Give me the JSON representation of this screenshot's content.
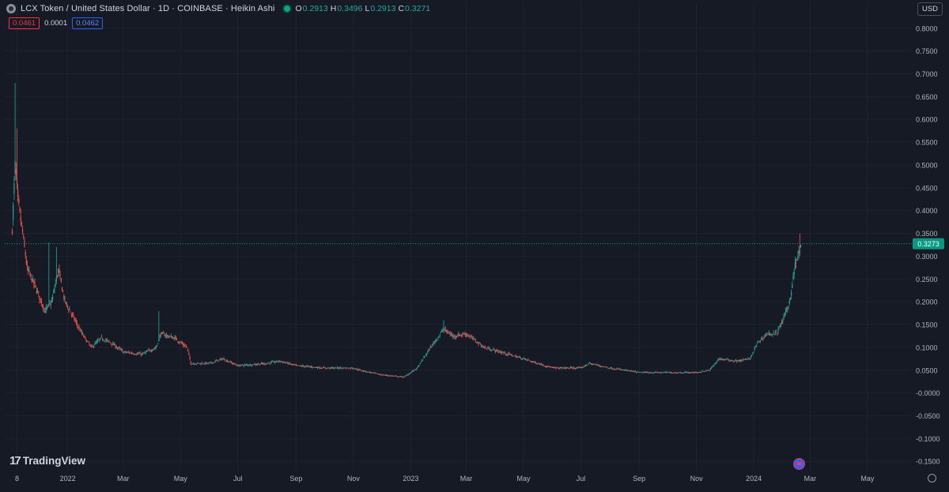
{
  "header": {
    "title": "LCX Token / United States Dollar · 1D · COINBASE · Heikin Ashi",
    "ohlc": [
      {
        "k": "O",
        "v": "0.2913"
      },
      {
        "k": "H",
        "v": "0.3496"
      },
      {
        "k": "L",
        "v": "0.2913"
      },
      {
        "k": "C",
        "v": "0.3271"
      }
    ],
    "bid": "0.0461",
    "spread": "0.0001",
    "ask": "0.0462",
    "currency": "USD"
  },
  "brand": "TradingView",
  "colors": {
    "up": "#26a69a",
    "down": "#ef5350",
    "background": "#161a25",
    "grid": "#1f2330",
    "price_tag": "#089981"
  },
  "icons": [
    "coin-logo-icon",
    "live-status-icon",
    "tradingview-logo-icon",
    "event-flag-icon",
    "settings-gear-icon"
  ],
  "chart_data": {
    "type": "candlestick",
    "style": "Heikin Ashi",
    "ylim": [
      -0.16,
      0.81
    ],
    "y_ticks": [
      "0.8000",
      "0.7500",
      "0.7000",
      "0.6500",
      "0.6000",
      "0.5500",
      "0.5000",
      "0.4500",
      "0.4000",
      "0.3500",
      "0.3000",
      "0.2500",
      "0.2000",
      "0.1500",
      "0.1000",
      "0.0500",
      "-0.0000",
      "-0.0500",
      "-0.1000",
      "-0.1500"
    ],
    "y_tick_values": [
      0.8,
      0.75,
      0.7,
      0.65,
      0.6,
      0.55,
      0.5,
      0.45,
      0.4,
      0.35,
      0.3,
      0.25,
      0.2,
      0.15,
      0.1,
      0.05,
      0,
      -0.05,
      -0.1,
      -0.15
    ],
    "x_labels": [
      {
        "label": "8",
        "date": "2021-11-08"
      },
      {
        "label": "2022",
        "date": "2022-01-01"
      },
      {
        "label": "Mar",
        "date": "2022-03-01"
      },
      {
        "label": "May",
        "date": "2022-05-01"
      },
      {
        "label": "Jul",
        "date": "2022-07-01"
      },
      {
        "label": "Sep",
        "date": "2022-09-01"
      },
      {
        "label": "Nov",
        "date": "2022-11-01"
      },
      {
        "label": "2023",
        "date": "2023-01-01"
      },
      {
        "label": "Mar",
        "date": "2023-03-01"
      },
      {
        "label": "May",
        "date": "2023-05-01"
      },
      {
        "label": "Jul",
        "date": "2023-07-01"
      },
      {
        "label": "Sep",
        "date": "2023-09-01"
      },
      {
        "label": "Nov",
        "date": "2023-11-01"
      },
      {
        "label": "2024",
        "date": "2024-01-01"
      },
      {
        "label": "Mar",
        "date": "2024-03-01"
      },
      {
        "label": "May",
        "date": "2024-05-01"
      }
    ],
    "x_range": [
      "2021-10-26",
      "2024-06-13"
    ],
    "last_price": "0.3273",
    "last_price_value": 0.3273,
    "trend_anchors": [
      {
        "date": "2021-11-03",
        "value": 0.36
      },
      {
        "date": "2021-11-06",
        "value": 0.5
      },
      {
        "date": "2021-11-09",
        "value": 0.42
      },
      {
        "date": "2021-11-14",
        "value": 0.35
      },
      {
        "date": "2021-11-19",
        "value": 0.27
      },
      {
        "date": "2021-11-26",
        "value": 0.24
      },
      {
        "date": "2021-12-08",
        "value": 0.18
      },
      {
        "date": "2021-12-15",
        "value": 0.2
      },
      {
        "date": "2021-12-22",
        "value": 0.27
      },
      {
        "date": "2021-12-29",
        "value": 0.2
      },
      {
        "date": "2022-01-06",
        "value": 0.17
      },
      {
        "date": "2022-01-16",
        "value": 0.13
      },
      {
        "date": "2022-01-26",
        "value": 0.1
      },
      {
        "date": "2022-02-06",
        "value": 0.12
      },
      {
        "date": "2022-02-16",
        "value": 0.11
      },
      {
        "date": "2022-03-01",
        "value": 0.09
      },
      {
        "date": "2022-03-21",
        "value": 0.085
      },
      {
        "date": "2022-04-05",
        "value": 0.1
      },
      {
        "date": "2022-04-10",
        "value": 0.13
      },
      {
        "date": "2022-04-25",
        "value": 0.12
      },
      {
        "date": "2022-05-08",
        "value": 0.1
      },
      {
        "date": "2022-05-12",
        "value": 0.065
      },
      {
        "date": "2022-06-01",
        "value": 0.065
      },
      {
        "date": "2022-06-15",
        "value": 0.075
      },
      {
        "date": "2022-07-01",
        "value": 0.06
      },
      {
        "date": "2022-08-01",
        "value": 0.065
      },
      {
        "date": "2022-08-15",
        "value": 0.07
      },
      {
        "date": "2022-09-01",
        "value": 0.06
      },
      {
        "date": "2022-10-01",
        "value": 0.055
      },
      {
        "date": "2022-11-01",
        "value": 0.055
      },
      {
        "date": "2022-11-08",
        "value": 0.05
      },
      {
        "date": "2022-12-01",
        "value": 0.04
      },
      {
        "date": "2022-12-25",
        "value": 0.035
      },
      {
        "date": "2023-01-08",
        "value": 0.055
      },
      {
        "date": "2023-01-22",
        "value": 0.1
      },
      {
        "date": "2023-02-05",
        "value": 0.14
      },
      {
        "date": "2023-02-15",
        "value": 0.125
      },
      {
        "date": "2023-03-01",
        "value": 0.13
      },
      {
        "date": "2023-03-20",
        "value": 0.1
      },
      {
        "date": "2023-04-15",
        "value": 0.085
      },
      {
        "date": "2023-05-01",
        "value": 0.075
      },
      {
        "date": "2023-06-01",
        "value": 0.055
      },
      {
        "date": "2023-07-01",
        "value": 0.055
      },
      {
        "date": "2023-07-10",
        "value": 0.065
      },
      {
        "date": "2023-08-01",
        "value": 0.055
      },
      {
        "date": "2023-09-01",
        "value": 0.045
      },
      {
        "date": "2023-10-01",
        "value": 0.045
      },
      {
        "date": "2023-11-01",
        "value": 0.045
      },
      {
        "date": "2023-11-15",
        "value": 0.05
      },
      {
        "date": "2023-11-25",
        "value": 0.075
      },
      {
        "date": "2023-12-15",
        "value": 0.07
      },
      {
        "date": "2023-12-28",
        "value": 0.075
      },
      {
        "date": "2024-01-05",
        "value": 0.11
      },
      {
        "date": "2024-01-15",
        "value": 0.13
      },
      {
        "date": "2024-01-25",
        "value": 0.13
      },
      {
        "date": "2024-02-01",
        "value": 0.16
      },
      {
        "date": "2024-02-08",
        "value": 0.2
      },
      {
        "date": "2024-02-14",
        "value": 0.28
      },
      {
        "date": "2024-02-17",
        "value": 0.3
      },
      {
        "date": "2024-02-20",
        "value": 0.32
      }
    ],
    "spikes": [
      {
        "date": "2021-11-06",
        "high": 0.68
      },
      {
        "date": "2021-11-08",
        "high": 0.58
      },
      {
        "date": "2021-12-12",
        "high": 0.33
      },
      {
        "date": "2021-12-20",
        "high": 0.32
      },
      {
        "date": "2022-04-08",
        "high": 0.18
      },
      {
        "date": "2023-02-05",
        "high": 0.16
      },
      {
        "date": "2024-02-19",
        "high": 0.3496
      }
    ]
  }
}
